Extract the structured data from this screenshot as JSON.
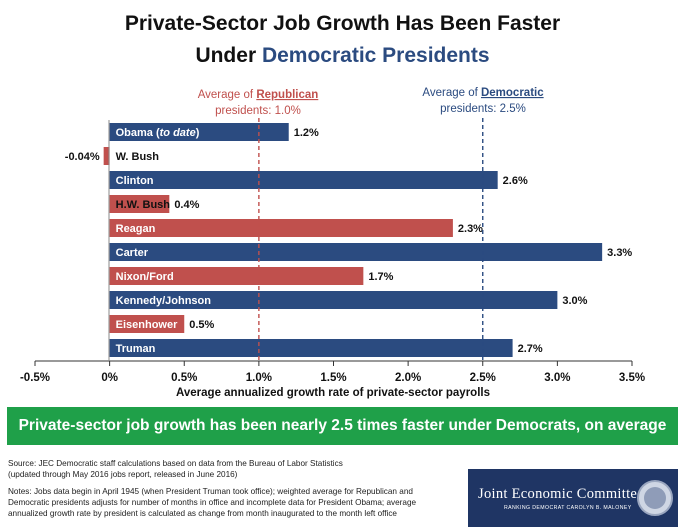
{
  "title": {
    "line1": "Private-Sector Job Growth Has Been Faster",
    "line2_prefix": "Under ",
    "line2_highlight": "Democratic Presidents"
  },
  "annotations": {
    "republican": {
      "line1_prefix": "Average of ",
      "line1_party": "Republican",
      "line2": "presidents: 1.0%"
    },
    "democratic": {
      "line1_prefix": "Average of ",
      "line1_party": "Democratic",
      "line2": "presidents: 2.5%"
    }
  },
  "chart_data": {
    "type": "bar",
    "orientation": "horizontal",
    "categories": [
      "Obama (to date)",
      "W. Bush",
      "Clinton",
      "H.W. Bush",
      "Reagan",
      "Carter",
      "Nixon/Ford",
      "Kennedy/Johnson",
      "Eisenhower",
      "Truman"
    ],
    "values": [
      1.2,
      -0.04,
      2.6,
      0.4,
      2.3,
      3.3,
      1.7,
      3.0,
      0.5,
      2.7
    ],
    "value_labels": [
      "1.2%",
      "-0.04%",
      "2.6%",
      "0.4%",
      "2.3%",
      "3.3%",
      "1.7%",
      "3.0%",
      "0.5%",
      "2.7%"
    ],
    "party": [
      "D",
      "R",
      "D",
      "R",
      "R",
      "D",
      "R",
      "D",
      "R",
      "D"
    ],
    "colors": {
      "D": "#2b4b80",
      "R": "#c0504d"
    },
    "reference_lines": [
      {
        "value": 1.0,
        "color": "#c0504d",
        "style": "dashed"
      },
      {
        "value": 2.5,
        "color": "#2b4b80",
        "style": "dashed"
      }
    ],
    "xlim": [
      -0.5,
      3.5
    ],
    "xticks": [
      -0.5,
      0,
      0.5,
      1.0,
      1.5,
      2.0,
      2.5,
      3.0,
      3.5
    ],
    "xtick_labels": [
      "-0.5%",
      "0%",
      "0.5%",
      "1.0%",
      "1.5%",
      "2.0%",
      "2.5%",
      "3.0%",
      "3.5%"
    ],
    "xlabel": "Average annualized growth rate of private-sector payrolls",
    "grid": false
  },
  "banner": "Private-sector job growth has been nearly 2.5 times faster under Democrats, on average",
  "source": {
    "line1": "Source: JEC Democratic staff calculations based on data from the Bureau of Labor Statistics",
    "line2": "(updated through May 2016 jobs report, released in June 2016)"
  },
  "notes": {
    "line1": "Notes: Jobs data begin in April 1945 (when President Truman took office); weighted average for Republican and",
    "line2": "Democratic presidents adjusts for number of months in office and incomplete data for President Obama; average",
    "line3": "annualized growth rate by president is calculated as change from month inaugurated to the month left office"
  },
  "logo": {
    "name": "Joint Economic Committee",
    "subtitle": "RANKING DEMOCRAT CAROLYN B. MALONEY"
  }
}
